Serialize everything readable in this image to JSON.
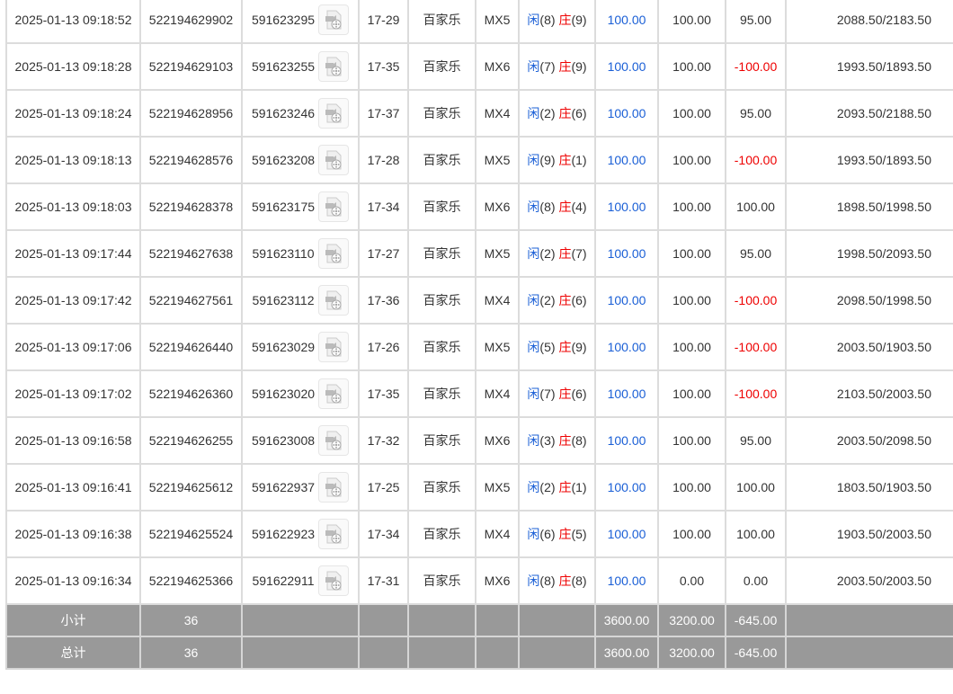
{
  "colors": {
    "player": "#1a5fd6",
    "banker": "#e00000",
    "negative": "#e00000",
    "valid_bet": "#1a5fd6",
    "summary_bg": "#999999"
  },
  "rows": [
    {
      "time": "2025-01-13 09:18:52",
      "bet_id": "522194629902",
      "round_id": "591623295",
      "table": "17-29",
      "game": "百家乐",
      "room": "MX5",
      "player_label": "闲",
      "player": "(8)",
      "banker_label": "庄",
      "banker": "(9)",
      "bet": "100.00",
      "valid": "100.00",
      "win": "95.00",
      "balance": "2088.50/2183.50"
    },
    {
      "time": "2025-01-13 09:18:28",
      "bet_id": "522194629103",
      "round_id": "591623255",
      "table": "17-35",
      "game": "百家乐",
      "room": "MX6",
      "player_label": "闲",
      "player": "(7)",
      "banker_label": "庄",
      "banker": "(9)",
      "bet": "100.00",
      "valid": "100.00",
      "win": "-100.00",
      "balance": "1993.50/1893.50"
    },
    {
      "time": "2025-01-13 09:18:24",
      "bet_id": "522194628956",
      "round_id": "591623246",
      "table": "17-37",
      "game": "百家乐",
      "room": "MX4",
      "player_label": "闲",
      "player": "(2)",
      "banker_label": "庄",
      "banker": "(6)",
      "bet": "100.00",
      "valid": "100.00",
      "win": "95.00",
      "balance": "2093.50/2188.50"
    },
    {
      "time": "2025-01-13 09:18:13",
      "bet_id": "522194628576",
      "round_id": "591623208",
      "table": "17-28",
      "game": "百家乐",
      "room": "MX5",
      "player_label": "闲",
      "player": "(9)",
      "banker_label": "庄",
      "banker": "(1)",
      "bet": "100.00",
      "valid": "100.00",
      "win": "-100.00",
      "balance": "1993.50/1893.50"
    },
    {
      "time": "2025-01-13 09:18:03",
      "bet_id": "522194628378",
      "round_id": "591623175",
      "table": "17-34",
      "game": "百家乐",
      "room": "MX6",
      "player_label": "闲",
      "player": "(8)",
      "banker_label": "庄",
      "banker": "(4)",
      "bet": "100.00",
      "valid": "100.00",
      "win": "100.00",
      "balance": "1898.50/1998.50"
    },
    {
      "time": "2025-01-13 09:17:44",
      "bet_id": "522194627638",
      "round_id": "591623110",
      "table": "17-27",
      "game": "百家乐",
      "room": "MX5",
      "player_label": "闲",
      "player": "(2)",
      "banker_label": "庄",
      "banker": "(7)",
      "bet": "100.00",
      "valid": "100.00",
      "win": "95.00",
      "balance": "1998.50/2093.50"
    },
    {
      "time": "2025-01-13 09:17:42",
      "bet_id": "522194627561",
      "round_id": "591623112",
      "table": "17-36",
      "game": "百家乐",
      "room": "MX4",
      "player_label": "闲",
      "player": "(2)",
      "banker_label": "庄",
      "banker": "(6)",
      "bet": "100.00",
      "valid": "100.00",
      "win": "-100.00",
      "balance": "2098.50/1998.50"
    },
    {
      "time": "2025-01-13 09:17:06",
      "bet_id": "522194626440",
      "round_id": "591623029",
      "table": "17-26",
      "game": "百家乐",
      "room": "MX5",
      "player_label": "闲",
      "player": "(5)",
      "banker_label": "庄",
      "banker": "(9)",
      "bet": "100.00",
      "valid": "100.00",
      "win": "-100.00",
      "balance": "2003.50/1903.50"
    },
    {
      "time": "2025-01-13 09:17:02",
      "bet_id": "522194626360",
      "round_id": "591623020",
      "table": "17-35",
      "game": "百家乐",
      "room": "MX4",
      "player_label": "闲",
      "player": "(7)",
      "banker_label": "庄",
      "banker": "(6)",
      "bet": "100.00",
      "valid": "100.00",
      "win": "-100.00",
      "balance": "2103.50/2003.50"
    },
    {
      "time": "2025-01-13 09:16:58",
      "bet_id": "522194626255",
      "round_id": "591623008",
      "table": "17-32",
      "game": "百家乐",
      "room": "MX6",
      "player_label": "闲",
      "player": "(3)",
      "banker_label": "庄",
      "banker": "(8)",
      "bet": "100.00",
      "valid": "100.00",
      "win": "95.00",
      "balance": "2003.50/2098.50"
    },
    {
      "time": "2025-01-13 09:16:41",
      "bet_id": "522194625612",
      "round_id": "591622937",
      "table": "17-25",
      "game": "百家乐",
      "room": "MX5",
      "player_label": "闲",
      "player": "(2)",
      "banker_label": "庄",
      "banker": "(1)",
      "bet": "100.00",
      "valid": "100.00",
      "win": "100.00",
      "balance": "1803.50/1903.50"
    },
    {
      "time": "2025-01-13 09:16:38",
      "bet_id": "522194625524",
      "round_id": "591622923",
      "table": "17-34",
      "game": "百家乐",
      "room": "MX4",
      "player_label": "闲",
      "player": "(6)",
      "banker_label": "庄",
      "banker": "(5)",
      "bet": "100.00",
      "valid": "100.00",
      "win": "100.00",
      "balance": "1903.50/2003.50"
    },
    {
      "time": "2025-01-13 09:16:34",
      "bet_id": "522194625366",
      "round_id": "591622911",
      "table": "17-31",
      "game": "百家乐",
      "room": "MX6",
      "player_label": "闲",
      "player": "(8)",
      "banker_label": "庄",
      "banker": "(8)",
      "bet": "100.00",
      "valid": "0.00",
      "win": "0.00",
      "balance": "2003.50/2003.50"
    }
  ],
  "summary": [
    {
      "label": "小计",
      "count": "36",
      "bet": "3600.00",
      "valid": "3200.00",
      "win": "-645.00"
    },
    {
      "label": "总计",
      "count": "36",
      "bet": "3600.00",
      "valid": "3200.00",
      "win": "-645.00"
    }
  ]
}
